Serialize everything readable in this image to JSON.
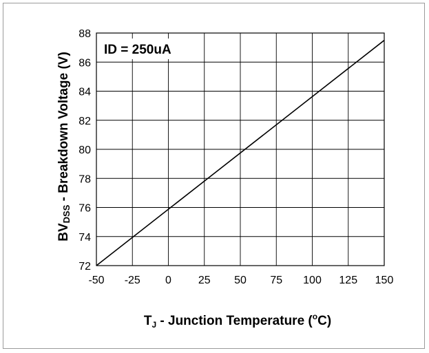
{
  "chart_data": {
    "type": "line",
    "annotation": "ID = 250uA",
    "xlabel": {
      "main": "T",
      "sub": "J",
      "rest": " - Junction Temperature (",
      "sup": "o",
      "unit": "C)"
    },
    "ylabel": {
      "main": "BV",
      "sub": "DSS",
      "rest": " - Breakdown Voltage (V)"
    },
    "xlim": [
      -50,
      150
    ],
    "ylim": [
      72,
      88
    ],
    "xticks": [
      -50,
      -25,
      0,
      25,
      50,
      75,
      100,
      125,
      150
    ],
    "yticks": [
      72,
      74,
      76,
      78,
      80,
      82,
      84,
      86,
      88
    ],
    "grid": true,
    "series": [
      {
        "x": [
          -50,
          150
        ],
        "y": [
          72,
          87.5
        ]
      }
    ]
  }
}
